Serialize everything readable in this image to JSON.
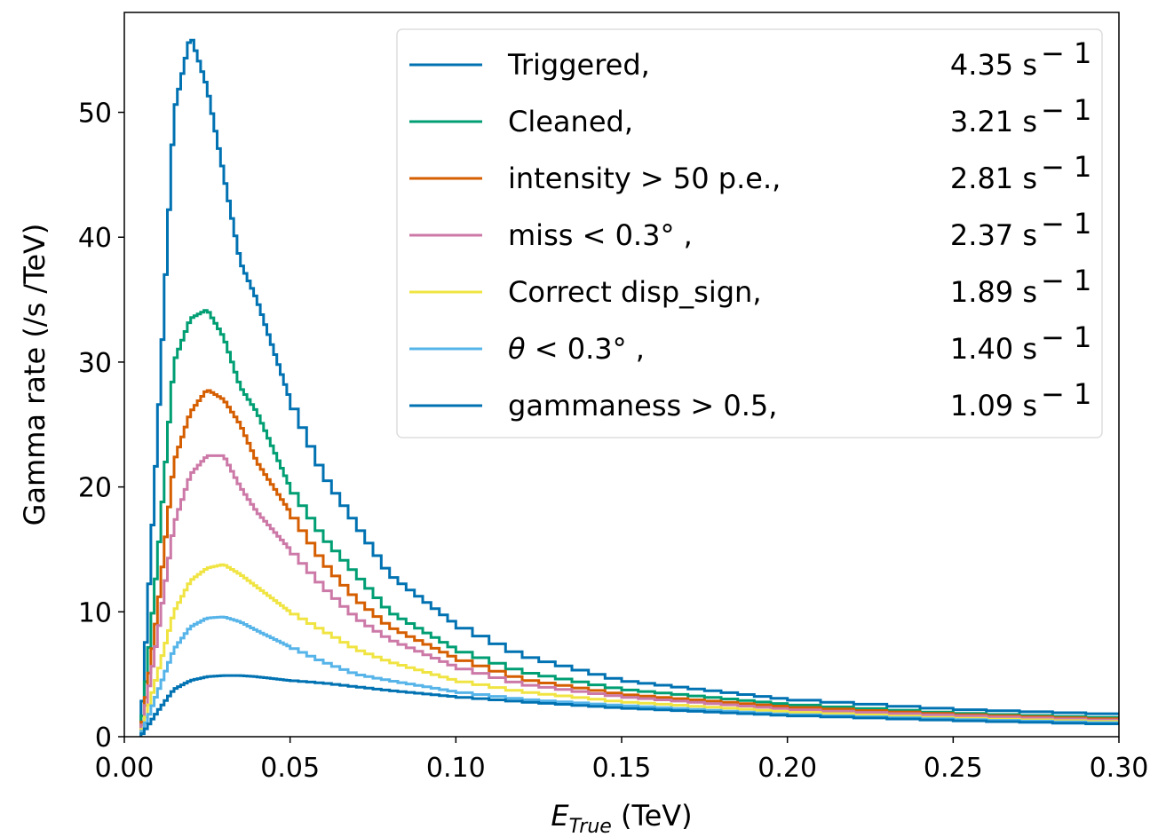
{
  "chart_data": {
    "type": "line",
    "title": "",
    "xlabel_main": "E",
    "xlabel_sub": "True",
    "xlabel_unit": " (TeV)",
    "ylabel": "Gamma rate (/s /TeV)",
    "xlim": [
      0.0,
      0.3
    ],
    "ylim": [
      0,
      58
    ],
    "xticks": [
      "0.00",
      "0.05",
      "0.10",
      "0.15",
      "0.20",
      "0.25",
      "0.30"
    ],
    "xtick_values": [
      0.0,
      0.05,
      0.1,
      0.15,
      0.2,
      0.25,
      0.3
    ],
    "yticks": [
      "0",
      "10",
      "20",
      "30",
      "40",
      "50"
    ],
    "ytick_values": [
      0,
      10,
      20,
      30,
      40,
      50
    ],
    "grid": false,
    "legend_placement": "upper-right",
    "step_style": "histogram",
    "x": [
      0.005,
      0.01,
      0.015,
      0.02,
      0.025,
      0.03,
      0.035,
      0.04,
      0.05,
      0.06,
      0.07,
      0.08,
      0.1,
      0.12,
      0.15,
      0.2,
      0.25,
      0.3
    ],
    "series": [
      {
        "name": "Triggered,",
        "rate_label": "4.35 s",
        "exp": "− 1",
        "color": "#0072b2",
        "values": [
          0.5,
          24,
          50,
          56.2,
          52,
          45,
          38,
          35,
          27,
          21,
          17,
          13,
          9,
          6.5,
          4.5,
          3.0,
          2.2,
          1.8
        ]
      },
      {
        "name": "Cleaned,",
        "rate_label": "3.21 s",
        "exp": "− 1",
        "color": "#009e73",
        "values": [
          0.3,
          14,
          30,
          33.5,
          34.2,
          32,
          28,
          26,
          20,
          16,
          13,
          10,
          7,
          5.2,
          3.8,
          2.6,
          1.9,
          1.5
        ]
      },
      {
        "name": "intensity > 50 p.e.,",
        "rate_label": "2.81 s",
        "exp": "− 1",
        "color": "#d55e00",
        "values": [
          0.2,
          10,
          22,
          26,
          27.8,
          27,
          25,
          22,
          18,
          14,
          11,
          8.8,
          6.3,
          4.6,
          3.4,
          2.4,
          1.8,
          1.4
        ]
      },
      {
        "name": "miss < 0.3° ,",
        "rate_label": "2.37 s",
        "exp": "− 1",
        "color": "#cc79a7",
        "values": [
          0.15,
          8,
          17,
          21,
          22.5,
          22.5,
          20,
          18,
          15,
          12,
          9.5,
          7.8,
          5.6,
          4.2,
          3.2,
          2.2,
          1.7,
          1.3
        ]
      },
      {
        "name": "Correct disp_sign,",
        "rate_label": "1.89 s",
        "exp": "− 1",
        "color": "#f0e442",
        "values": [
          0.1,
          5,
          10,
          12.5,
          13.5,
          13.8,
          13,
          12,
          10,
          8.5,
          7,
          6,
          4.5,
          3.6,
          2.8,
          2.0,
          1.5,
          1.2
        ]
      },
      {
        "name": "θ < 0.3° ,",
        "rate_label": "1.40 s",
        "exp": "− 1",
        "color": "#56b4e9",
        "values": [
          0.1,
          3.5,
          7,
          8.8,
          9.5,
          9.6,
          9.2,
          8.5,
          7.2,
          6,
          5,
          4.5,
          3.6,
          3.0,
          2.5,
          1.8,
          1.4,
          1.1
        ]
      },
      {
        "name": "gammaness > 0.5,",
        "rate_label": "1.09 s",
        "exp": "− 1",
        "color": "#0072b2",
        "values": [
          0.05,
          2,
          3.8,
          4.5,
          4.8,
          4.9,
          4.9,
          4.8,
          4.5,
          4.3,
          4.0,
          3.7,
          3.2,
          2.8,
          2.3,
          1.7,
          1.3,
          1.0
        ]
      }
    ]
  }
}
